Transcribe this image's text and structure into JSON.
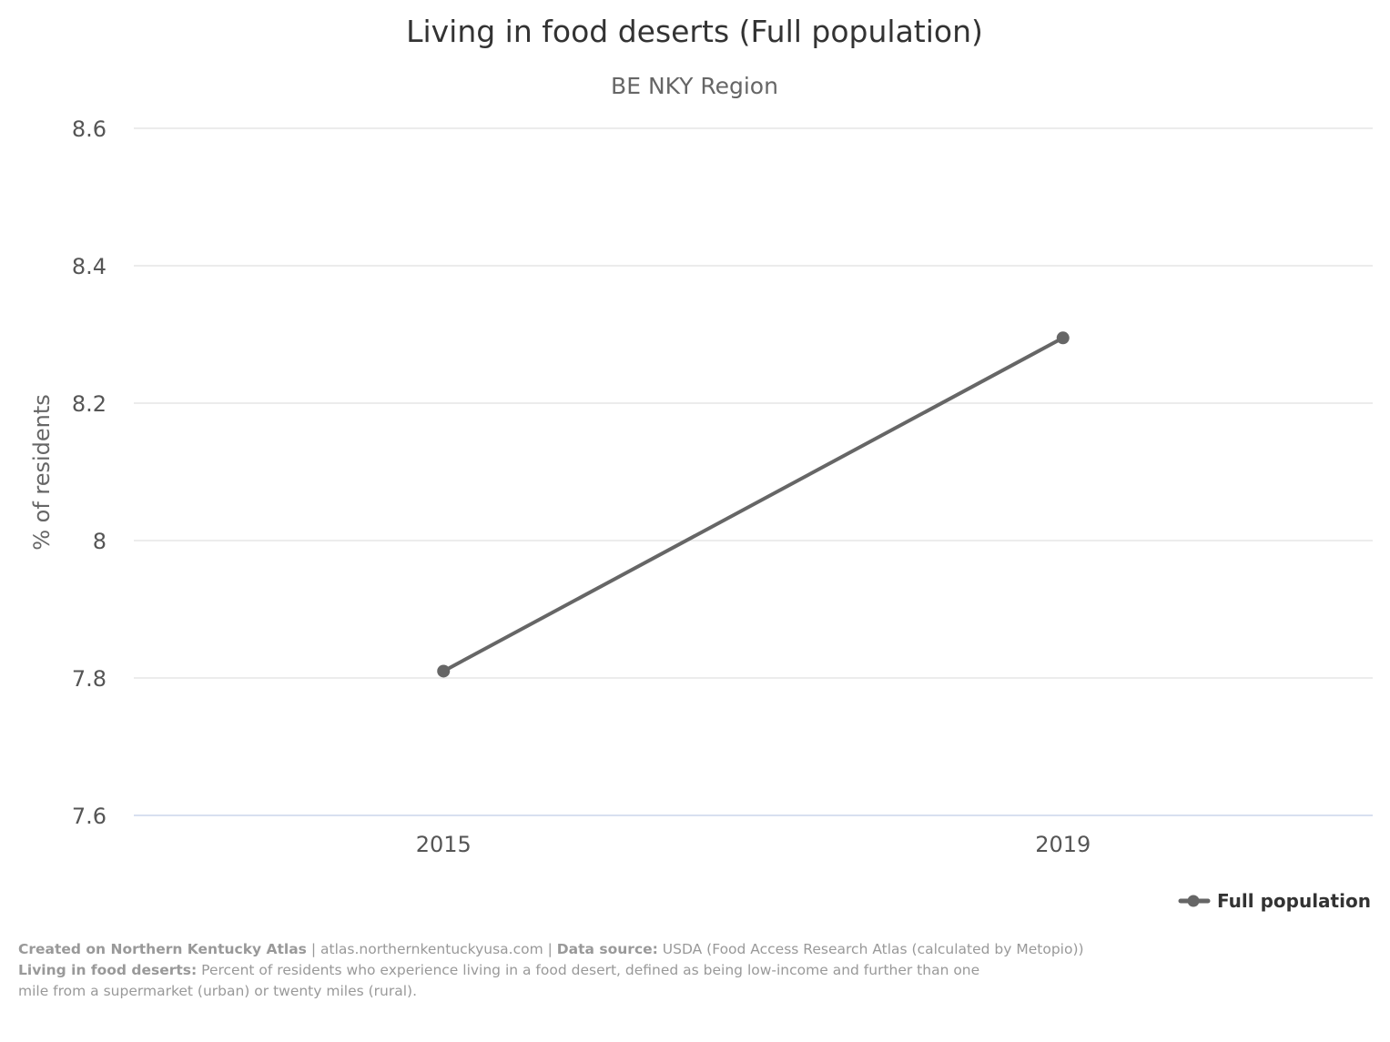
{
  "chart_data": {
    "type": "line",
    "title": "Living in food deserts (Full population)",
    "subtitle": "BE NKY Region",
    "xlabel": "",
    "ylabel": "% of residents",
    "categories": [
      "2015",
      "2019"
    ],
    "ylim": [
      7.6,
      8.6
    ],
    "yticks": [
      7.6,
      7.8,
      8,
      8.2,
      8.4,
      8.6
    ],
    "ytick_labels": [
      "7.6",
      "7.8",
      "8",
      "8.2",
      "8.4",
      "8.6"
    ],
    "grid": true,
    "legend_position": "bottom-right",
    "series": [
      {
        "name": "Full population",
        "color": "#666666",
        "values": [
          7.81,
          8.295
        ]
      }
    ]
  },
  "credits": {
    "created_label": "Created on Northern Kentucky Atlas",
    "site": "atlas.northernkentuckyusa.com",
    "source_label": "Data source:",
    "source_text": "USDA (Food Access Research Atlas (calculated by Metopio))",
    "separator": "|",
    "definition_label": "Living in food deserts:",
    "definition_text": "Percent of residents who experience living in a food desert, defined as being low-income and further than one mile from a supermarket (urban) or twenty miles (rural)."
  }
}
